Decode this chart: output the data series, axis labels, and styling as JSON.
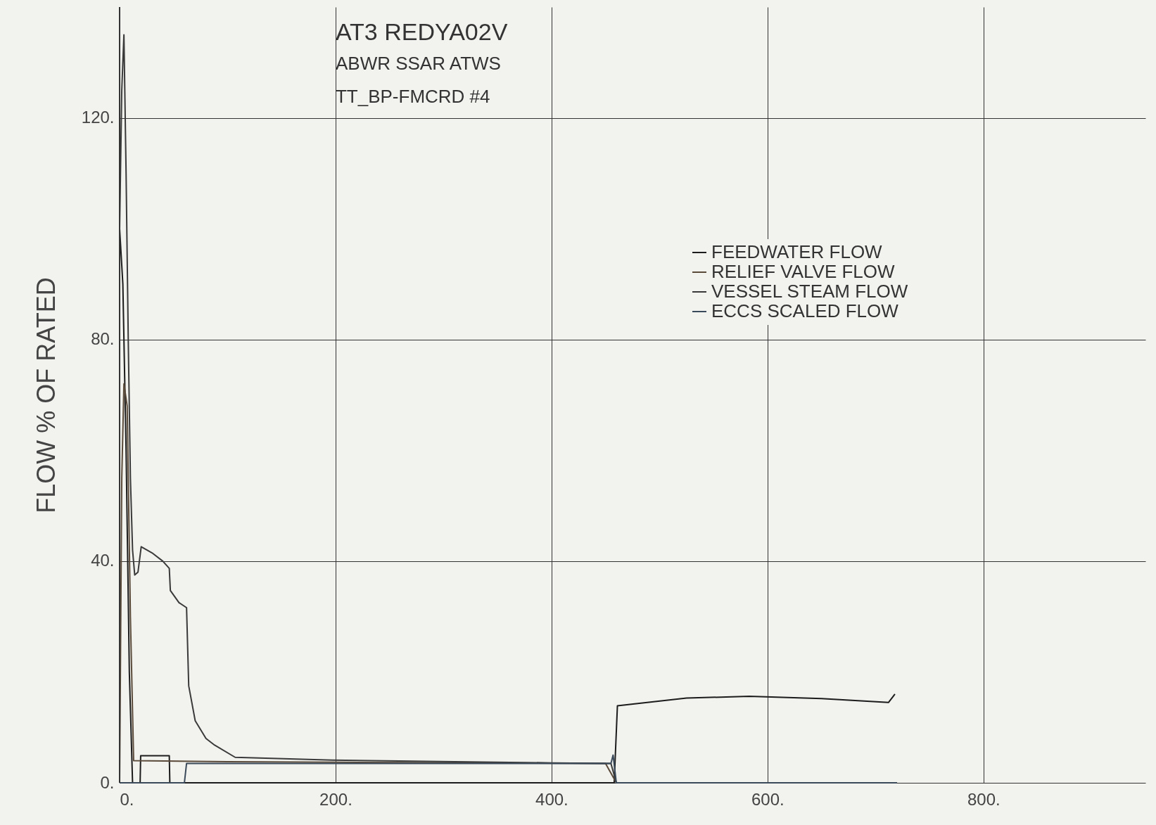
{
  "chart_data": {
    "type": "line",
    "title": "AT3 REDYA02V",
    "subtitle": "ABWR SSAR ATWS",
    "annotations": [
      "TT_BP-FMCRD #4"
    ],
    "ylabel": "FLOW % OF RATED",
    "xlim": [
      0,
      950
    ],
    "ylim": [
      0,
      140
    ],
    "xticks": [
      {
        "value": 0,
        "label": "0."
      },
      {
        "value": 200,
        "label": "200."
      },
      {
        "value": 400,
        "label": "400."
      },
      {
        "value": 600,
        "label": "600."
      },
      {
        "value": 800,
        "label": "800."
      }
    ],
    "yticks": [
      {
        "value": 0,
        "label": "0."
      },
      {
        "value": 40,
        "label": "40."
      },
      {
        "value": 80,
        "label": "80."
      },
      {
        "value": 120,
        "label": "120."
      }
    ],
    "grid": true,
    "legend": "top right",
    "line_style": "solid",
    "series": [
      {
        "name": "FEEDWATER FLOW",
        "color": "#1c1c1c",
        "x": [
          0,
          3,
          6,
          9,
          12,
          19,
          19.5,
          46,
          46.5,
          458,
          461,
          525,
          583,
          650,
          712,
          718
        ],
        "values": [
          100,
          90,
          60,
          20,
          0,
          0,
          4.9,
          4.9,
          0,
          0,
          13.9,
          15.3,
          15.6,
          15.2,
          14.5,
          16
        ]
      },
      {
        "name": "RELIEF VALVE FLOW",
        "color": "#5a4a3a",
        "x": [
          0,
          2,
          4,
          7,
          10,
          13,
          100,
          200,
          450,
          460,
          720
        ],
        "values": [
          0,
          55,
          72,
          68,
          30,
          4,
          3.8,
          3.7,
          3.5,
          0,
          0
        ]
      },
      {
        "name": "VESSEL STEAM FLOW",
        "color": "#3a3a3a",
        "x": [
          0,
          2,
          4,
          6,
          8,
          10,
          12,
          14,
          17,
          20,
          30,
          40,
          46,
          47,
          55,
          62,
          64,
          70,
          80,
          88,
          107,
          197,
          400,
          455,
          460,
          720
        ],
        "values": [
          100,
          125,
          135,
          110,
          80,
          55,
          42,
          37.5,
          38,
          42.6,
          41.5,
          40,
          38.7,
          34.7,
          32.5,
          31.6,
          17.5,
          11.2,
          8,
          6.8,
          4.6,
          4.1,
          3.6,
          3.5,
          0,
          0
        ]
      },
      {
        "name": "ECCS SCALED FLOW",
        "color": "#3a4a5a",
        "x": [
          0,
          60,
          62,
          455,
          457,
          460,
          720
        ],
        "values": [
          0,
          0,
          3.5,
          3.5,
          5,
          0,
          0
        ]
      }
    ]
  }
}
